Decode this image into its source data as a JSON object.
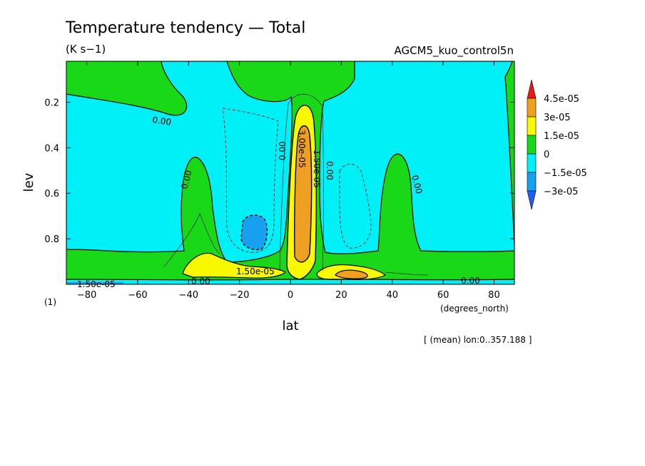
{
  "chart_data": {
    "type": "contour",
    "title": "Temperature tendency — Total",
    "units": "(K s−1)",
    "model": "AGCM5_kuo_control5n",
    "xlabel": "lat",
    "xunits": "(degrees_north)",
    "ylabel": "lev",
    "yunits": "(1)",
    "mean_note": "[ (mean) lon:0..357.188 ]",
    "xlim": [
      -88,
      88
    ],
    "ylim": [
      0.02,
      1.0
    ],
    "y_inverted": true,
    "x_ticks": [
      -80,
      -60,
      -40,
      -20,
      0,
      20,
      40,
      60,
      80
    ],
    "y_ticks": [
      0.2,
      0.4,
      0.6,
      0.8
    ],
    "colorbar": {
      "labels": [
        "4.5e-05",
        "3e-05",
        "1.5e-05",
        "0",
        "−1.5e-05",
        "−3e-05"
      ],
      "colors": [
        "#e81c1c",
        "#f0a020",
        "#f8f800",
        "#18d818",
        "#00f0f8",
        "#18a0f0",
        "#2060f8"
      ]
    },
    "contour_labels": [
      "0.00",
      "0.00",
      "0.00",
      "0.00",
      "3.00e-05",
      "1.50e-05",
      "1.50e-05",
      "0.00",
      "0.00",
      "0.00",
      "1.50e-05"
    ]
  }
}
